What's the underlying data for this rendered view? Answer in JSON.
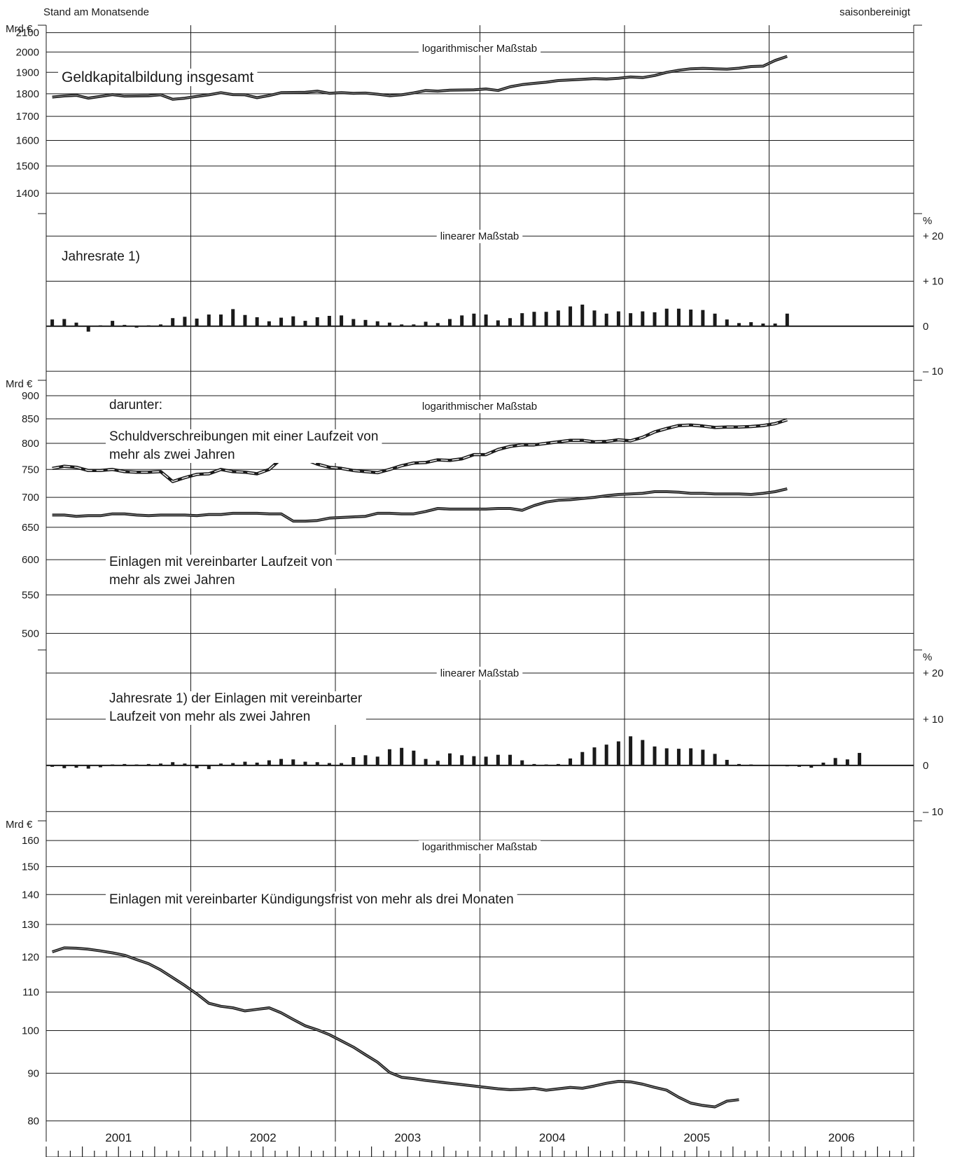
{
  "header": {
    "left_note": "Stand am Monatsende",
    "right_note": "saisonbereinigt"
  },
  "chart_data": [
    {
      "type": "line",
      "unit_label": "Mrd €",
      "scale_label": "logarithmischer Maßstab",
      "log_scale": true,
      "grid": true,
      "y_ticks": [
        1400,
        1500,
        1600,
        1700,
        1800,
        1900,
        2000,
        2100
      ],
      "ylim": [
        1330,
        2140
      ],
      "x_start": "2001-01",
      "series": [
        {
          "name": "Geldkapitalbildung insgesamt",
          "style": "solid",
          "values": [
            1785,
            1790,
            1793,
            1780,
            1788,
            1796,
            1789,
            1790,
            1791,
            1795,
            1775,
            1780,
            1788,
            1795,
            1805,
            1796,
            1795,
            1782,
            1792,
            1805,
            1806,
            1807,
            1812,
            1802,
            1805,
            1802,
            1803,
            1798,
            1791,
            1795,
            1804,
            1815,
            1812,
            1816,
            1817,
            1818,
            1822,
            1815,
            1832,
            1842,
            1848,
            1853,
            1861,
            1864,
            1867,
            1870,
            1868,
            1872,
            1878,
            1875,
            1885,
            1900,
            1910,
            1917,
            1919,
            1917,
            1915,
            1920,
            1928,
            1930,
            1958,
            1978
          ]
        }
      ]
    },
    {
      "type": "bar",
      "unit_label": "%",
      "title": "Jahresrate 1)",
      "scale_label": "linearer Maßstab",
      "y_ticks": [
        "+ 20",
        "+ 10",
        "0",
        "– 10"
      ],
      "ylim": [
        -12,
        25
      ],
      "x_start": "2001-01",
      "values": [
        1.5,
        1.6,
        0.8,
        -1.2,
        0.2,
        1.2,
        0.3,
        -0.3,
        0.2,
        0.4,
        1.8,
        2.1,
        1.7,
        2.6,
        2.6,
        3.8,
        2.5,
        2.0,
        1.1,
        1.9,
        2.2,
        1.2,
        2.0,
        2.3,
        2.4,
        1.6,
        1.4,
        1.1,
        0.8,
        0.4,
        0.4,
        1.0,
        0.7,
        1.6,
        2.4,
        2.8,
        2.6,
        1.3,
        1.8,
        2.9,
        3.2,
        3.2,
        3.5,
        4.4,
        4.8,
        3.5,
        2.8,
        3.3,
        2.9,
        3.3,
        3.1,
        3.9,
        3.9,
        3.7,
        3.6,
        2.8,
        1.5,
        0.7,
        0.9,
        0.6,
        0.6,
        2.8
      ]
    },
    {
      "type": "line",
      "unit_label": "Mrd €",
      "scale_label": "logarithmischer Maßstab",
      "log_scale": true,
      "grid": true,
      "y_ticks": [
        500,
        550,
        600,
        650,
        700,
        750,
        800,
        850,
        900
      ],
      "ylim": [
        480,
        935
      ],
      "x_start": "2001-01",
      "annotation": "darunter:",
      "series": [
        {
          "name": "Schuldverschreibungen mit einer Laufzeit von mehr als zwei Jahren",
          "style": "dashed",
          "values": [
            752,
            756,
            754,
            748,
            748,
            750,
            746,
            745,
            745,
            746,
            728,
            735,
            741,
            742,
            750,
            746,
            745,
            742,
            750,
            770,
            770,
            769,
            760,
            754,
            752,
            748,
            746,
            744,
            750,
            757,
            762,
            763,
            768,
            767,
            770,
            778,
            778,
            788,
            794,
            797,
            797,
            800,
            803,
            806,
            806,
            803,
            804,
            807,
            805,
            812,
            823,
            830,
            836,
            837,
            835,
            832,
            833,
            833,
            834,
            836,
            840,
            848
          ]
        },
        {
          "name": "Einlagen mit vereinbarter Laufzeit von mehr als zwei Jahren",
          "style": "solid",
          "values": [
            670,
            670,
            668,
            669,
            669,
            672,
            672,
            670,
            669,
            670,
            670,
            670,
            669,
            671,
            671,
            673,
            673,
            673,
            672,
            672,
            660,
            660,
            661,
            665,
            666,
            667,
            668,
            673,
            673,
            672,
            672,
            676,
            681,
            680,
            680,
            680,
            680,
            681,
            681,
            678,
            686,
            692,
            695,
            696,
            698,
            700,
            703,
            705,
            706,
            707,
            710,
            710,
            709,
            707,
            707,
            706,
            706,
            706,
            705,
            707,
            710,
            715
          ]
        }
      ]
    },
    {
      "type": "bar",
      "unit_label": "%",
      "title": "Jahresrate 1) der Einlagen mit vereinbarter Laufzeit von mehr als zwei Jahren",
      "scale_label": "linearer Maßstab",
      "y_ticks": [
        "+ 20",
        "+ 10",
        "0",
        "– 10"
      ],
      "ylim": [
        -12,
        25
      ],
      "x_start": "2001-01",
      "values": [
        -0.3,
        -0.6,
        -0.5,
        -0.7,
        -0.4,
        0.2,
        0.3,
        0.2,
        0.3,
        0.4,
        0.7,
        0.4,
        -0.6,
        -0.8,
        0.4,
        0.5,
        0.8,
        0.6,
        1.1,
        1.4,
        1.3,
        0.8,
        0.7,
        0.5,
        0.5,
        1.8,
        2.2,
        1.9,
        3.5,
        3.8,
        3.2,
        1.4,
        1.0,
        2.6,
        2.2,
        2.0,
        1.9,
        2.3,
        2.3,
        1.1,
        0.3,
        0.2,
        0.3,
        1.5,
        2.9,
        3.9,
        4.5,
        5.2,
        6.3,
        5.5,
        4.1,
        3.7,
        3.6,
        3.7,
        3.4,
        2.5,
        1.2,
        0.3,
        0.2,
        0.1,
        0.1,
        -0.2,
        -0.3,
        -0.5,
        0.6,
        1.6,
        1.3,
        2.7
      ]
    },
    {
      "type": "line",
      "unit_label": "Mrd €",
      "scale_label": "logarithmischer Maßstab",
      "log_scale": true,
      "grid": true,
      "y_ticks": [
        80,
        90,
        100,
        110,
        120,
        130,
        140,
        150,
        160
      ],
      "ylim": [
        76,
        168
      ],
      "x_start": "2001-01",
      "series": [
        {
          "name": "Einlagen mit vereinbarter Kündigungsfrist von mehr als drei Monaten",
          "style": "solid",
          "values": [
            121.5,
            122.7,
            122.6,
            122.3,
            121.8,
            121.2,
            120.5,
            119.2,
            118.0,
            116.2,
            114.0,
            111.8,
            109.5,
            107.0,
            106.2,
            105.8,
            105.0,
            105.4,
            105.8,
            104.5,
            102.8,
            101.2,
            100.2,
            99.0,
            97.5,
            96.0,
            94.2,
            92.5,
            90.2,
            89.1,
            88.8,
            88.4,
            88.1,
            87.8,
            87.5,
            87.2,
            86.9,
            86.6,
            86.4,
            86.5,
            86.7,
            86.3,
            86.6,
            86.9,
            86.7,
            87.2,
            87.8,
            88.2,
            88.1,
            87.6,
            86.9,
            86.3,
            84.8,
            83.6,
            83.1,
            82.8,
            84.0,
            84.3
          ]
        }
      ]
    }
  ],
  "x_axis": {
    "years": [
      "2001",
      "2002",
      "2003",
      "2004",
      "2005",
      "2006"
    ]
  }
}
